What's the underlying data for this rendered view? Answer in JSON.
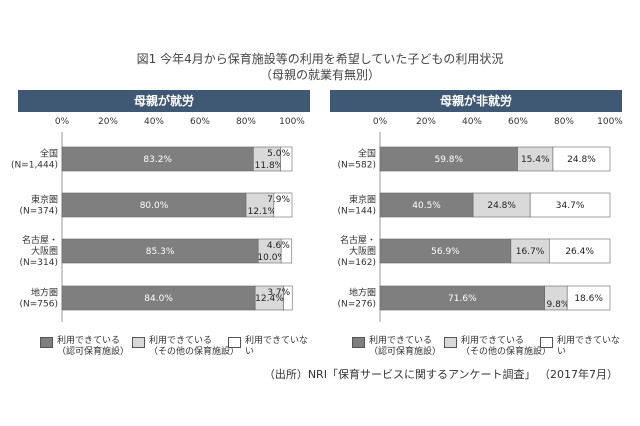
{
  "title": "図1 今年4月から保育施設等の利用を希望していた子どもの利用状況",
  "subtitle": "（母親の就業有無別）",
  "source": "（出所）NRI「保育サービスに関するアンケート調査」 （2017年7月）",
  "legend": [
    {
      "label": "利用できている\n（認可保育施設）",
      "color": "#7f7f7f",
      "icon": "swatch-dark-gray"
    },
    {
      "label": "利用できている\n（その他の保育施設）",
      "color": "#d9d9d9",
      "icon": "swatch-light-gray"
    },
    {
      "label": "利用できていない",
      "color": "#ffffff",
      "icon": "swatch-white"
    }
  ],
  "colors": {
    "header": "#3f5873",
    "series": [
      "#7f7f7f",
      "#d9d9d9",
      "#ffffff"
    ]
  },
  "chart_data": [
    {
      "type": "bar",
      "orientation": "horizontal",
      "stacked": true,
      "title": "母親が就労",
      "xlim": [
        0,
        100
      ],
      "ticks": [
        "0%",
        "20%",
        "40%",
        "60%",
        "80%",
        "100%"
      ],
      "categories": [
        "全国\n(N=1,444)",
        "東京圏\n(N=374)",
        "名古屋・\n大阪圏\n(N=314)",
        "地方圏\n(N=756)"
      ],
      "series": [
        {
          "name": "利用できている（認可保育施設）",
          "values": [
            83.2,
            80.0,
            85.3,
            84.0
          ],
          "labels": [
            "83.2%",
            "80.0%",
            "85.3%",
            "84.0%"
          ]
        },
        {
          "name": "利用できている（その他の保育施設）",
          "values": [
            11.8,
            12.1,
            10.0,
            12.4
          ],
          "labels": [
            "11.8%",
            "12.1%",
            "10.0%",
            "12.4%"
          ]
        },
        {
          "name": "利用できていない",
          "values": [
            5.0,
            7.9,
            4.6,
            3.7
          ],
          "labels": [
            "5.0%",
            "7.9%",
            "4.6%",
            "3.7%"
          ]
        }
      ]
    },
    {
      "type": "bar",
      "orientation": "horizontal",
      "stacked": true,
      "title": "母親が非就労",
      "xlim": [
        0,
        100
      ],
      "ticks": [
        "0%",
        "20%",
        "40%",
        "60%",
        "80%",
        "100%"
      ],
      "categories": [
        "全国\n(N=582)",
        "東京圏\n(N=144)",
        "名古屋・\n大阪圏\n(N=162)",
        "地方圏\n(N=276)"
      ],
      "series": [
        {
          "name": "利用できている（認可保育施設）",
          "values": [
            59.8,
            40.5,
            56.9,
            71.6
          ],
          "labels": [
            "59.8%",
            "40.5%",
            "56.9%",
            "71.6%"
          ]
        },
        {
          "name": "利用できている（その他の保育施設）",
          "values": [
            15.4,
            24.8,
            16.7,
            9.8
          ],
          "labels": [
            "15.4%",
            "24.8%",
            "16.7%",
            "9.8%"
          ]
        },
        {
          "name": "利用できていない",
          "values": [
            24.8,
            34.7,
            26.4,
            18.6
          ],
          "labels": [
            "24.8%",
            "34.7%",
            "26.4%",
            "18.6%"
          ]
        }
      ]
    }
  ]
}
